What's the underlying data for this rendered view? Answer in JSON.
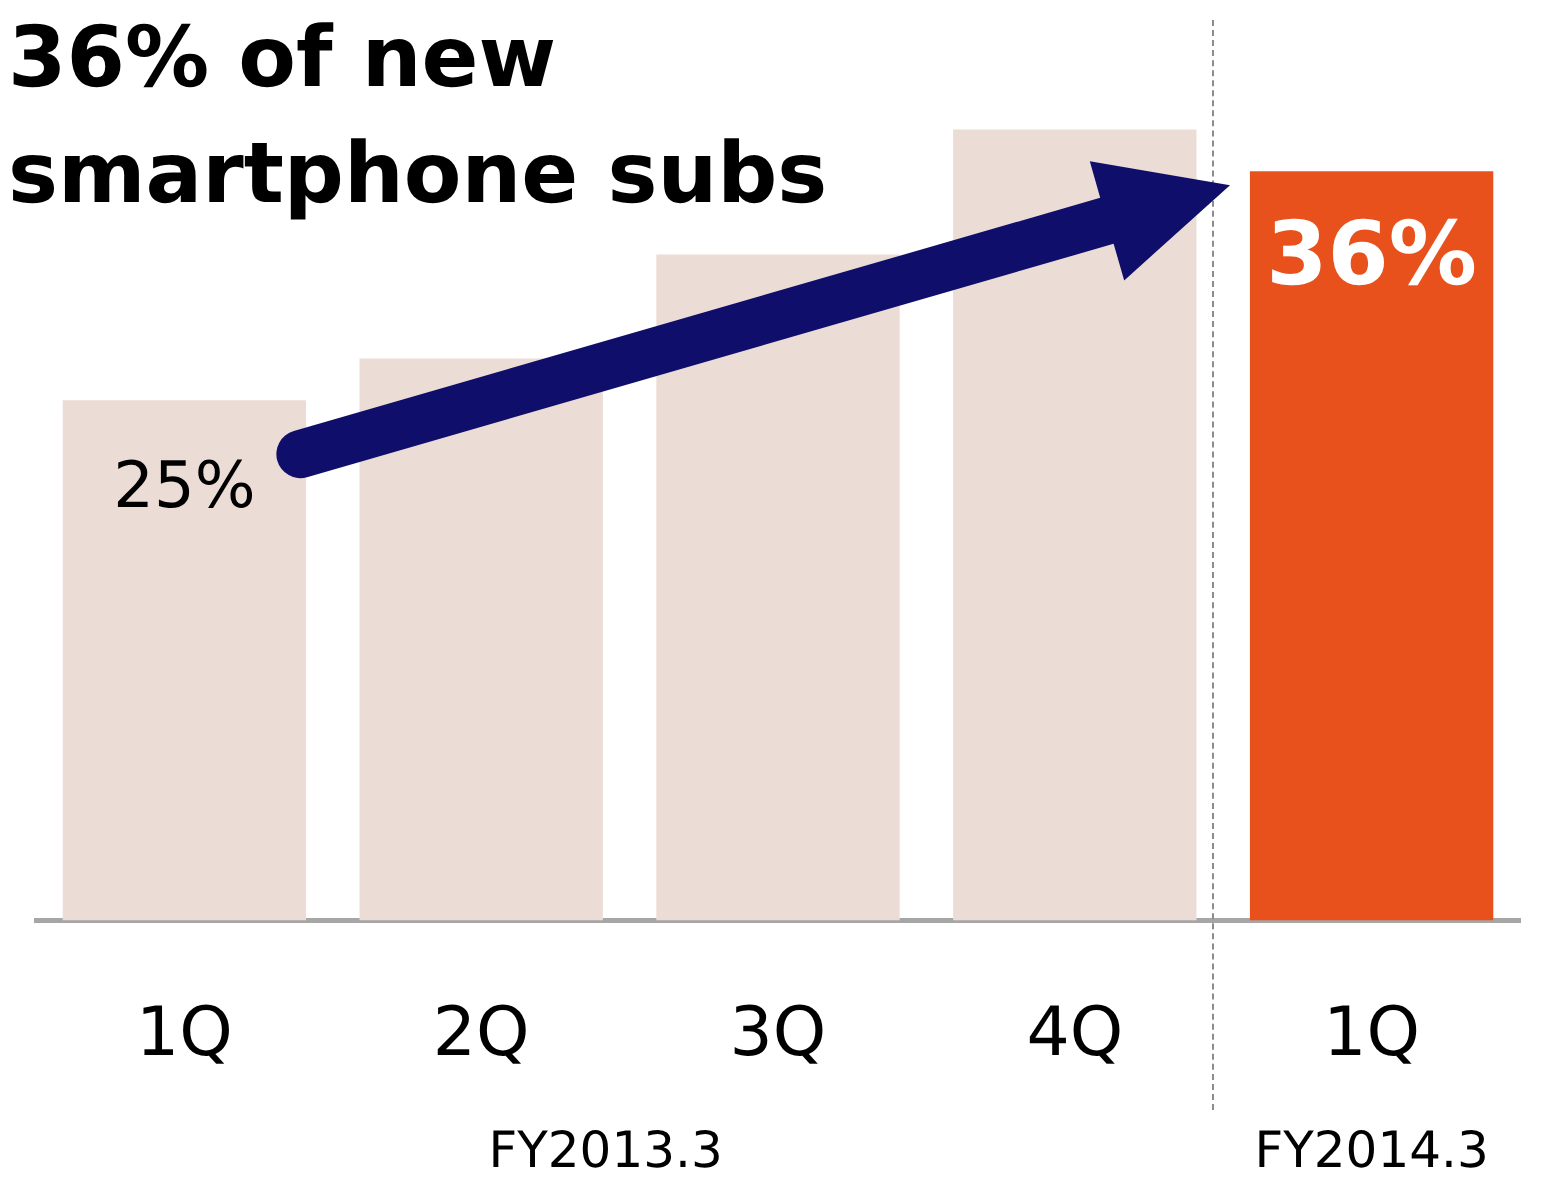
{
  "chart_data": {
    "type": "bar",
    "title": "36% of new smartphone subs",
    "categories": [
      "1Q",
      "2Q",
      "3Q",
      "4Q",
      "1Q"
    ],
    "values": [
      25,
      27,
      32,
      38,
      36
    ],
    "colors": [
      "#ecdcd6",
      "#ecdcd6",
      "#ecdcd6",
      "#ecdcd6",
      "#e8501c"
    ],
    "value_labels": [
      "25%",
      null,
      null,
      null,
      "36%"
    ],
    "annotations": [
      "FY2013.3",
      "FY2014.3"
    ],
    "tick_labels": "x",
    "grid": false,
    "legend": false
  }
}
